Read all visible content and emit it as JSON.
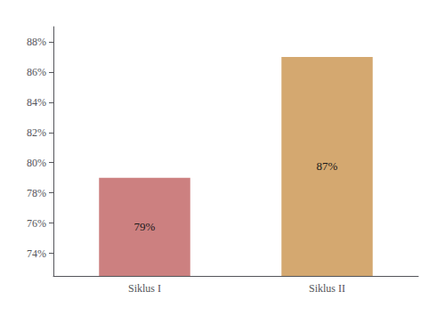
{
  "chart_data": {
    "type": "bar",
    "categories": [
      "Siklus I",
      "Siklus II"
    ],
    "values": [
      79,
      87
    ],
    "value_labels": [
      "79%",
      "87%"
    ],
    "data_labels": true,
    "colors": [
      "#cc8080",
      "#d4a870"
    ],
    "ylim": [
      72.5,
      89
    ],
    "yticks": [
      {
        "value": 74,
        "label": "74%"
      },
      {
        "value": 76,
        "label": "76%"
      },
      {
        "value": 78,
        "label": "78%"
      },
      {
        "value": 80,
        "label": "80%"
      },
      {
        "value": 82,
        "label": "82%"
      },
      {
        "value": 84,
        "label": "84%"
      },
      {
        "value": 86,
        "label": "86%"
      },
      {
        "value": 88,
        "label": "88%"
      }
    ],
    "grid": false
  }
}
